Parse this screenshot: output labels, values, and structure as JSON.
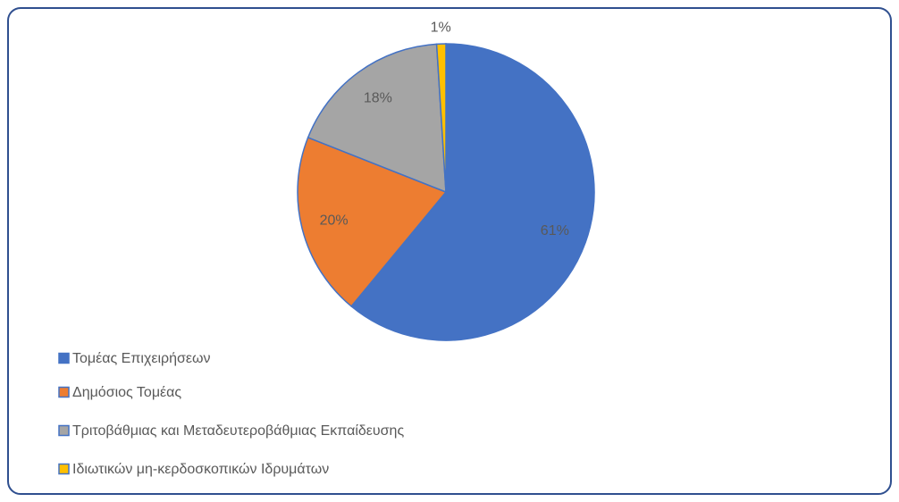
{
  "chart_data": {
    "type": "pie",
    "categories": [
      "Τομέας Επιχειρήσεων",
      "Δημόσιος Τομέας",
      "Τριτοβάθμιας και Μεταδευτεροβάθμιας Εκπαίδευσης",
      "Ιδιωτικών μη-κερδοσκοπικών Ιδρυμάτων"
    ],
    "values": [
      61,
      20,
      18,
      1
    ],
    "value_labels": [
      "61%",
      "20%",
      "18%",
      "1%"
    ],
    "colors": [
      "#4472c4",
      "#ed7d31",
      "#a5a5a5",
      "#ffc000"
    ],
    "legend": "bottom-left"
  }
}
